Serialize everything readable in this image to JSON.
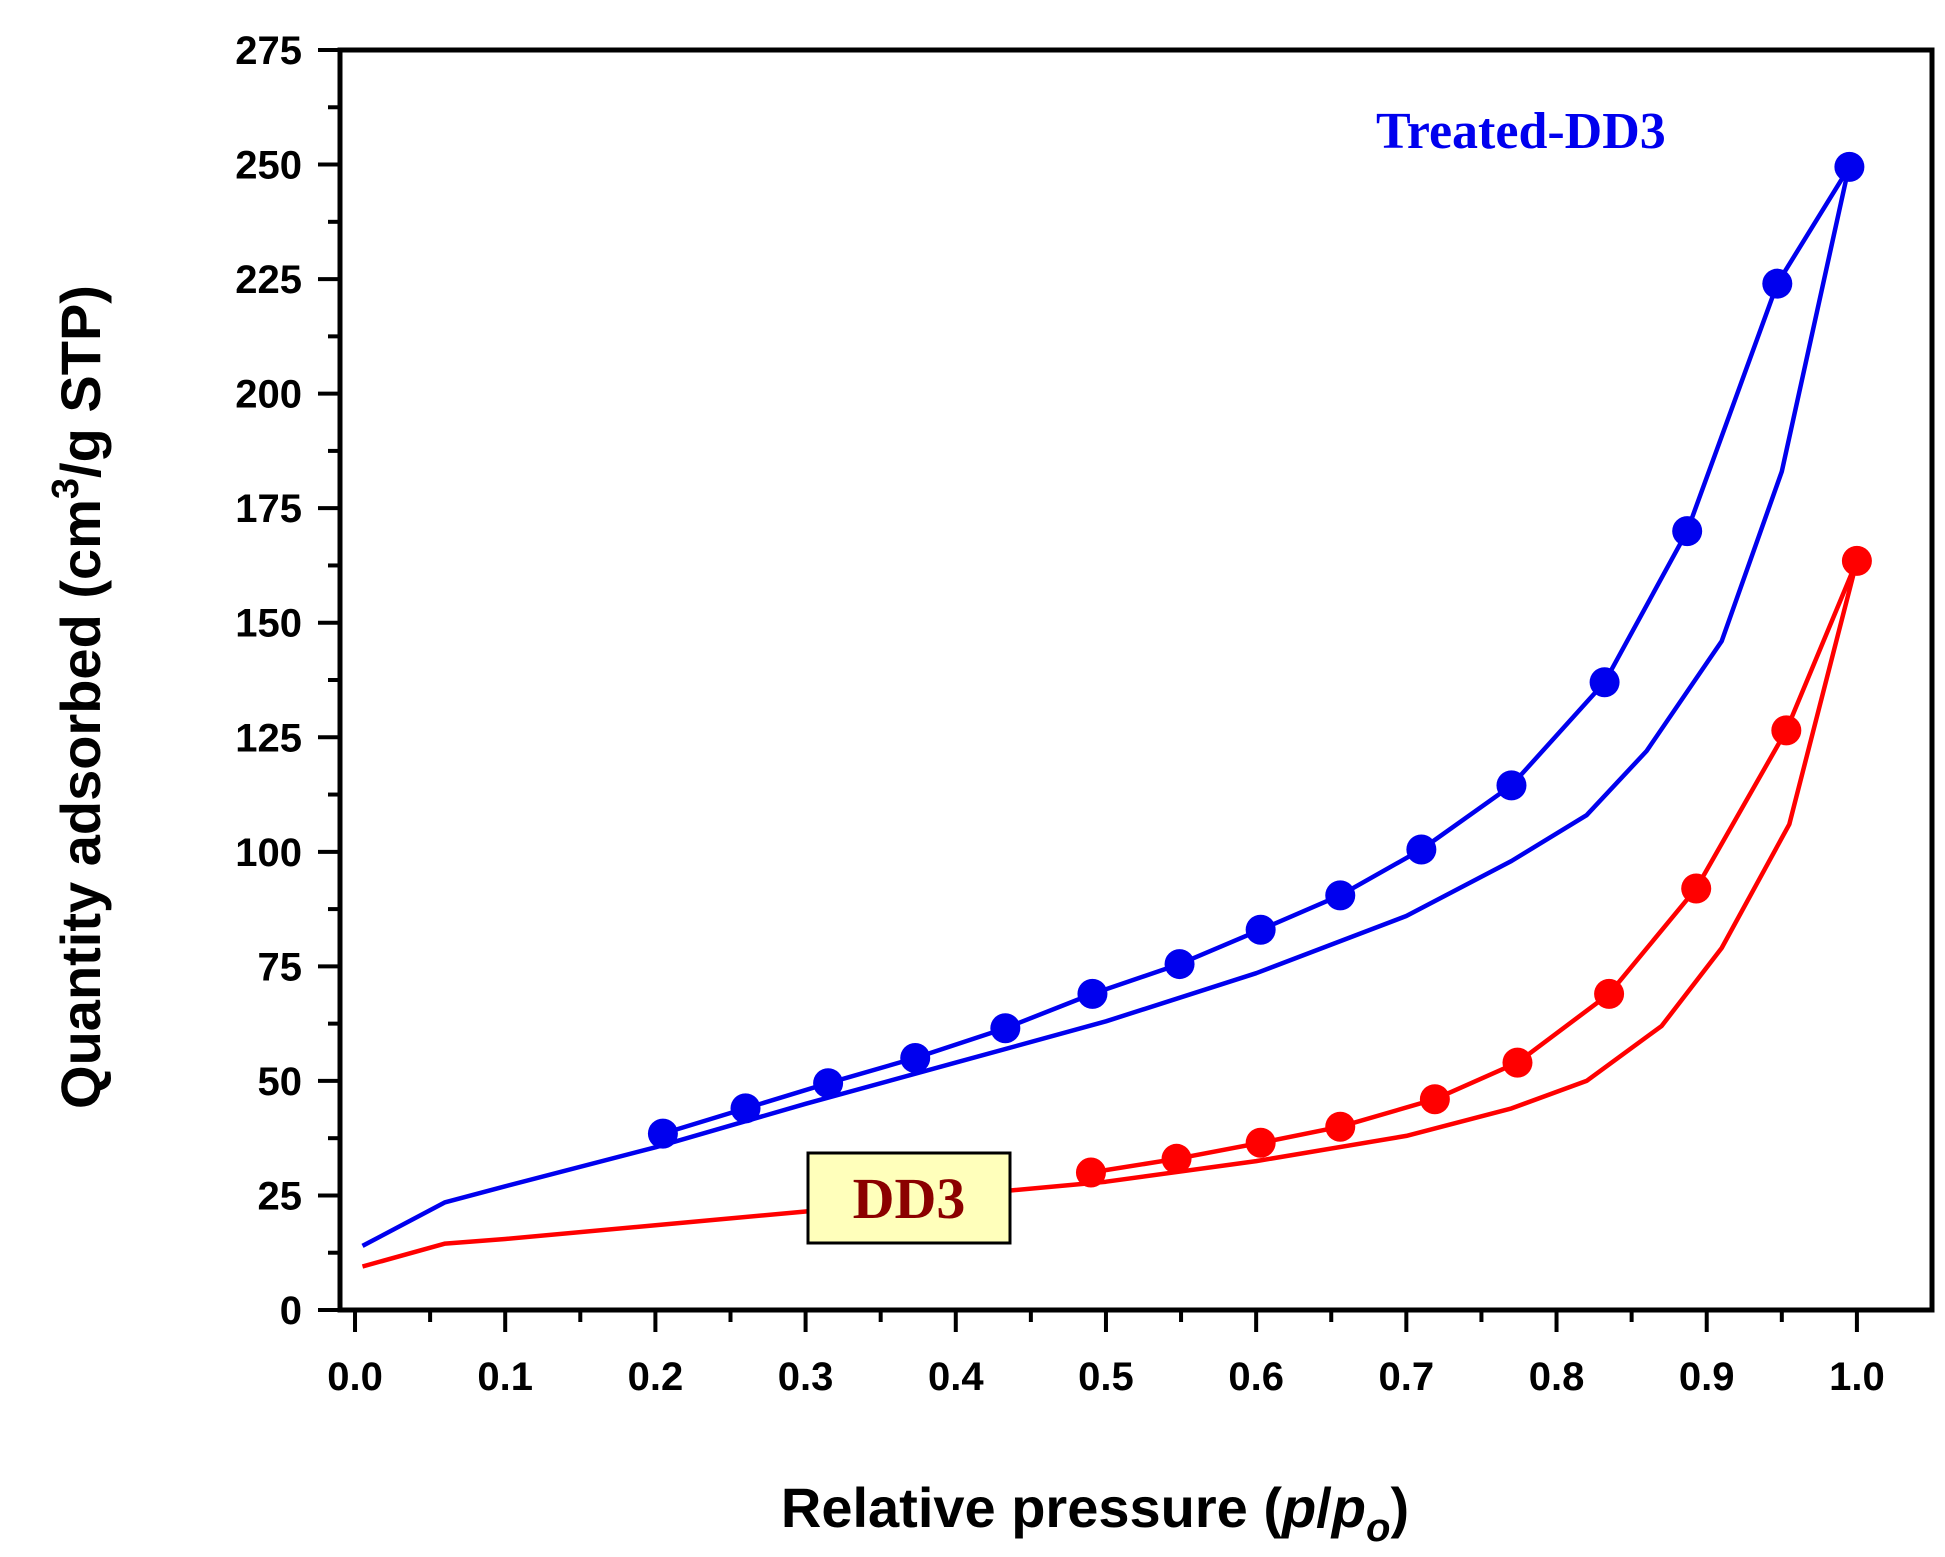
{
  "chart_data": {
    "type": "line",
    "title": "",
    "xlabel_main": "Relative pressure (",
    "xlabel_p": "p",
    "xlabel_slash": "/",
    "xlabel_p2": "p",
    "xlabel_sub": "o",
    "xlabel_close": ")",
    "ylabel_main": "Quantity adsorbed (cm",
    "ylabel_sup": "3",
    "ylabel_tail": "/g STP)",
    "xlim": [
      -0.01,
      1.05
    ],
    "ylim": [
      0,
      275
    ],
    "xticks": [
      0.0,
      0.1,
      0.2,
      0.3,
      0.4,
      0.5,
      0.6,
      0.7,
      0.8,
      0.9,
      1.0
    ],
    "xtick_labels": [
      "0.0",
      "0.1",
      "0.2",
      "0.3",
      "0.4",
      "0.5",
      "0.6",
      "0.7",
      "0.8",
      "0.9",
      "1.0"
    ],
    "yticks": [
      0,
      25,
      50,
      75,
      100,
      125,
      150,
      175,
      200,
      225,
      250,
      275
    ],
    "ytick_labels": [
      "0",
      "25",
      "50",
      "75",
      "100",
      "125",
      "150",
      "175",
      "200",
      "225",
      "250",
      "275"
    ],
    "grid": false,
    "series": [
      {
        "name": "Treated-DD3",
        "color": "#0000ee",
        "adsorption": {
          "x": [
            0.005,
            0.06,
            0.1,
            0.2,
            0.3,
            0.4,
            0.5,
            0.6,
            0.7,
            0.77,
            0.82,
            0.86,
            0.91,
            0.95,
            0.995
          ],
          "y": [
            14,
            23.5,
            27,
            35.5,
            45,
            54,
            63,
            73.5,
            86,
            98,
            108,
            122,
            146,
            183,
            250
          ]
        },
        "desorption": {
          "x": [
            0.995,
            0.947,
            0.887,
            0.832,
            0.77,
            0.71,
            0.656,
            0.603,
            0.549,
            0.491,
            0.433,
            0.373,
            0.315,
            0.26,
            0.205
          ],
          "y": [
            249.5,
            224,
            170,
            137,
            114.5,
            100.5,
            90.5,
            83,
            75.5,
            69,
            61.5,
            55,
            49.5,
            44,
            38.5
          ]
        }
      },
      {
        "name": "DD3",
        "color": "#ff0000",
        "adsorption": {
          "x": [
            0.005,
            0.06,
            0.1,
            0.2,
            0.3,
            0.4,
            0.5,
            0.6,
            0.7,
            0.77,
            0.82,
            0.87,
            0.91,
            0.955,
            1.0
          ],
          "y": [
            9.5,
            14.5,
            15.5,
            18.5,
            21.5,
            25,
            28,
            32.5,
            38,
            44,
            50,
            62,
            79,
            106,
            163.5
          ]
        },
        "desorption": {
          "x": [
            1.0,
            0.953,
            0.893,
            0.835,
            0.774,
            0.719,
            0.656,
            0.603,
            0.547,
            0.49
          ],
          "y": [
            163.5,
            126.5,
            92,
            69,
            54,
            46,
            40,
            36.5,
            33,
            30
          ]
        }
      }
    ],
    "annotations": [
      {
        "text": "Treated-DD3",
        "color": "#0000ee"
      },
      {
        "text": "DD3",
        "color": "#8b0000",
        "box_fill": "#ffffbb"
      }
    ]
  }
}
